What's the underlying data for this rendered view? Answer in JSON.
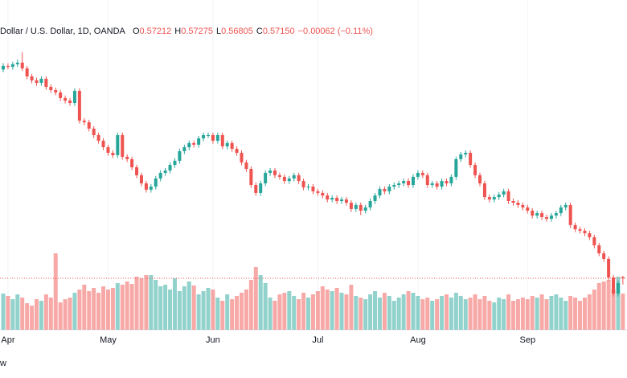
{
  "chart_data": {
    "type": "candlestick",
    "header": {
      "symbol": "Dollar / U.S. Dollar, 1D, OANDA",
      "ohlc": [
        {
          "key": "O",
          "value": "0.57212"
        },
        {
          "key": "H",
          "value": "0.57275"
        },
        {
          "key": "L",
          "value": "0.56805"
        },
        {
          "key": "C",
          "value": "0.57150"
        }
      ],
      "change": "−0.00062 (−0.11%)"
    },
    "footer": "w",
    "up_color": "#26a69a",
    "down_color": "#ef5350",
    "ylim": [
      0.543,
      0.713
    ],
    "categories": [
      null,
      "Apr",
      null,
      null,
      null,
      null,
      null,
      null,
      null,
      null,
      null,
      null,
      null,
      null,
      null,
      null,
      null,
      null,
      null,
      null,
      null,
      null,
      "May",
      null,
      null,
      null,
      null,
      null,
      null,
      null,
      null,
      null,
      null,
      null,
      null,
      null,
      null,
      null,
      null,
      null,
      null,
      null,
      null,
      null,
      "Jun",
      null,
      null,
      null,
      null,
      null,
      null,
      null,
      null,
      null,
      null,
      null,
      null,
      null,
      null,
      null,
      null,
      null,
      null,
      null,
      null,
      null,
      "Jul",
      null,
      null,
      null,
      null,
      null,
      null,
      null,
      null,
      null,
      null,
      null,
      null,
      null,
      null,
      null,
      null,
      null,
      null,
      null,
      null,
      "Aug",
      null,
      null,
      null,
      null,
      null,
      null,
      null,
      null,
      null,
      null,
      null,
      null,
      null,
      null,
      null,
      null,
      null,
      null,
      null,
      null,
      null,
      null,
      "Sep",
      null,
      null,
      null,
      null,
      null,
      null,
      null,
      null,
      null,
      null,
      null,
      null,
      null,
      null,
      null,
      null,
      null,
      null,
      null,
      null
    ],
    "open": [
      0.687,
      0.689,
      0.6885,
      0.6899,
      0.6908,
      0.6876,
      0.6832,
      0.681,
      0.6796,
      0.6819,
      0.6774,
      0.6756,
      0.6743,
      0.6712,
      0.6698,
      0.6685,
      0.6752,
      0.6587,
      0.6578,
      0.6543,
      0.6507,
      0.6476,
      0.644,
      0.6409,
      0.6396,
      0.6507,
      0.6387,
      0.6374,
      0.6329,
      0.6285,
      0.624,
      0.6205,
      0.6222,
      0.6267,
      0.6298,
      0.6311,
      0.6342,
      0.6365,
      0.6418,
      0.644,
      0.6463,
      0.6454,
      0.6489,
      0.6507,
      0.6507,
      0.6476,
      0.6507,
      0.6445,
      0.6463,
      0.6431,
      0.6409,
      0.6356,
      0.632,
      0.6231,
      0.6187,
      0.624,
      0.6298,
      0.6311,
      0.6285,
      0.6276,
      0.6253,
      0.6267,
      0.6285,
      0.6253,
      0.6218,
      0.6222,
      0.6196,
      0.6187,
      0.6173,
      0.6151,
      0.616,
      0.6142,
      0.6151,
      0.6133,
      0.6098,
      0.612,
      0.6089,
      0.6107,
      0.6142,
      0.6173,
      0.6209,
      0.6196,
      0.6222,
      0.6231,
      0.624,
      0.6253,
      0.6231,
      0.6276,
      0.6298,
      0.6285,
      0.6231,
      0.624,
      0.6222,
      0.6253,
      0.624,
      0.6276,
      0.6374,
      0.64,
      0.6409,
      0.6342,
      0.6285,
      0.624,
      0.6164,
      0.6151,
      0.6164,
      0.6178,
      0.6196,
      0.6142,
      0.6133,
      0.612,
      0.6107,
      0.6089,
      0.6062,
      0.6075,
      0.6053,
      0.6044,
      0.6062,
      0.6075,
      0.6107,
      0.612,
      0.6009,
      0.5986,
      0.5978,
      0.5964,
      0.5942,
      0.5897,
      0.5853,
      0.5822,
      0.5719,
      0.563,
      0.57212
    ],
    "high": [
      0.6905,
      0.6904,
      0.6913,
      0.6925,
      0.6965,
      0.689,
      0.6846,
      0.6824,
      0.6833,
      0.6833,
      0.6788,
      0.677,
      0.6757,
      0.6726,
      0.6712,
      0.6766,
      0.6766,
      0.6601,
      0.6592,
      0.6557,
      0.6521,
      0.649,
      0.6454,
      0.6423,
      0.6521,
      0.6521,
      0.6401,
      0.6388,
      0.6343,
      0.6299,
      0.6254,
      0.6236,
      0.6281,
      0.6312,
      0.6325,
      0.6356,
      0.6379,
      0.6432,
      0.6454,
      0.6477,
      0.6477,
      0.6503,
      0.6521,
      0.6521,
      0.6521,
      0.6521,
      0.6521,
      0.6477,
      0.6477,
      0.6445,
      0.6423,
      0.637,
      0.6334,
      0.6245,
      0.6254,
      0.6312,
      0.6325,
      0.6325,
      0.6299,
      0.629,
      0.6281,
      0.6299,
      0.6299,
      0.6267,
      0.6236,
      0.6236,
      0.621,
      0.6201,
      0.6187,
      0.6174,
      0.6174,
      0.6165,
      0.6165,
      0.6147,
      0.6134,
      0.6134,
      0.6121,
      0.6156,
      0.6187,
      0.6223,
      0.6223,
      0.6236,
      0.6245,
      0.6254,
      0.6267,
      0.6267,
      0.629,
      0.6312,
      0.6312,
      0.6299,
      0.6254,
      0.6254,
      0.6267,
      0.6267,
      0.629,
      0.6388,
      0.6414,
      0.6423,
      0.6423,
      0.6356,
      0.6299,
      0.6254,
      0.6178,
      0.6178,
      0.6192,
      0.621,
      0.621,
      0.6156,
      0.6147,
      0.6134,
      0.6121,
      0.6103,
      0.6089,
      0.6089,
      0.6067,
      0.6076,
      0.6089,
      0.6121,
      0.6134,
      0.6134,
      0.6023,
      0.6,
      0.5992,
      0.5978,
      0.5956,
      0.5911,
      0.5867,
      0.5836,
      0.5733,
      0.5702,
      0.57275
    ],
    "low": [
      0.6855,
      0.6871,
      0.6869,
      0.6884,
      0.6862,
      0.6816,
      0.6794,
      0.678,
      0.678,
      0.6758,
      0.674,
      0.6727,
      0.6696,
      0.6682,
      0.6669,
      0.6669,
      0.6571,
      0.6562,
      0.6527,
      0.6491,
      0.646,
      0.6424,
      0.6393,
      0.638,
      0.638,
      0.6371,
      0.6358,
      0.6313,
      0.6269,
      0.6224,
      0.6189,
      0.6189,
      0.6206,
      0.6251,
      0.6282,
      0.6295,
      0.6326,
      0.6349,
      0.6402,
      0.6424,
      0.6438,
      0.6438,
      0.6473,
      0.6491,
      0.646,
      0.646,
      0.6429,
      0.6429,
      0.6415,
      0.6393,
      0.634,
      0.6304,
      0.6215,
      0.6171,
      0.6171,
      0.6224,
      0.6282,
      0.6269,
      0.626,
      0.6237,
      0.6237,
      0.6251,
      0.6237,
      0.6202,
      0.6202,
      0.618,
      0.6171,
      0.6157,
      0.6135,
      0.6135,
      0.6126,
      0.6126,
      0.6117,
      0.6082,
      0.6082,
      0.6065,
      0.6073,
      0.6091,
      0.6126,
      0.6157,
      0.618,
      0.618,
      0.6206,
      0.6215,
      0.6224,
      0.6215,
      0.6215,
      0.626,
      0.6269,
      0.6215,
      0.6215,
      0.6206,
      0.6206,
      0.6224,
      0.6224,
      0.626,
      0.6358,
      0.6384,
      0.6326,
      0.6269,
      0.6224,
      0.6148,
      0.6135,
      0.6135,
      0.6148,
      0.6162,
      0.6126,
      0.6117,
      0.6104,
      0.6091,
      0.6073,
      0.6046,
      0.6046,
      0.6037,
      0.6028,
      0.6028,
      0.6046,
      0.6059,
      0.6091,
      0.5993,
      0.597,
      0.5962,
      0.5948,
      0.5926,
      0.5881,
      0.5837,
      0.5806,
      0.5703,
      0.5614,
      0.5614,
      0.56805
    ],
    "close": [
      0.689,
      0.6885,
      0.6899,
      0.6908,
      0.6876,
      0.6832,
      0.681,
      0.6796,
      0.6819,
      0.6774,
      0.6756,
      0.6743,
      0.6712,
      0.6698,
      0.6685,
      0.6752,
      0.6587,
      0.6578,
      0.6543,
      0.6507,
      0.6476,
      0.644,
      0.6409,
      0.6396,
      0.6507,
      0.6387,
      0.6374,
      0.6329,
      0.6285,
      0.624,
      0.6205,
      0.6222,
      0.6267,
      0.6298,
      0.6311,
      0.6342,
      0.6365,
      0.6418,
      0.644,
      0.6463,
      0.6454,
      0.6489,
      0.6507,
      0.6507,
      0.6476,
      0.6507,
      0.6445,
      0.6463,
      0.6431,
      0.6409,
      0.6356,
      0.632,
      0.6231,
      0.6187,
      0.624,
      0.6298,
      0.6311,
      0.6285,
      0.6276,
      0.6253,
      0.6267,
      0.6285,
      0.6253,
      0.6218,
      0.6222,
      0.6196,
      0.6187,
      0.6173,
      0.6151,
      0.616,
      0.6142,
      0.6151,
      0.6133,
      0.6098,
      0.612,
      0.6089,
      0.6107,
      0.6142,
      0.6173,
      0.6209,
      0.6196,
      0.6222,
      0.6231,
      0.624,
      0.6253,
      0.6231,
      0.6276,
      0.6298,
      0.6285,
      0.6231,
      0.624,
      0.6222,
      0.6253,
      0.624,
      0.6276,
      0.6374,
      0.64,
      0.6409,
      0.6342,
      0.6285,
      0.624,
      0.6164,
      0.6151,
      0.6164,
      0.6178,
      0.6196,
      0.6142,
      0.6133,
      0.612,
      0.6107,
      0.6089,
      0.6062,
      0.6075,
      0.6053,
      0.6044,
      0.6062,
      0.6075,
      0.6107,
      0.612,
      0.6009,
      0.5986,
      0.5978,
      0.5964,
      0.5942,
      0.5897,
      0.5853,
      0.5822,
      0.5719,
      0.563,
      0.5688,
      0.5715
    ],
    "volume": [
      45,
      42,
      38,
      44,
      40,
      33,
      30,
      38,
      36,
      44,
      40,
      95,
      34,
      38,
      40,
      46,
      50,
      56,
      48,
      52,
      46,
      54,
      50,
      52,
      58,
      56,
      60,
      57,
      66,
      64,
      68,
      68,
      62,
      54,
      56,
      50,
      64,
      48,
      54,
      60,
      55,
      44,
      48,
      52,
      50,
      40,
      36,
      44,
      38,
      42,
      46,
      50,
      62,
      78,
      68,
      58,
      40,
      36,
      44,
      46,
      48,
      42,
      38,
      46,
      40,
      44,
      48,
      54,
      50,
      48,
      52,
      46,
      44,
      56,
      42,
      40,
      38,
      44,
      48,
      40,
      46,
      42,
      36,
      40,
      44,
      48,
      46,
      42,
      38,
      40,
      36,
      38,
      42,
      44,
      40,
      46,
      42,
      38,
      40,
      44,
      38,
      42,
      36,
      34,
      40,
      38,
      44,
      36,
      38,
      40,
      38,
      42,
      40,
      44,
      38,
      42,
      44,
      40,
      36,
      42,
      40,
      36,
      40,
      44,
      50,
      58,
      60,
      62,
      50,
      66,
      45
    ]
  }
}
